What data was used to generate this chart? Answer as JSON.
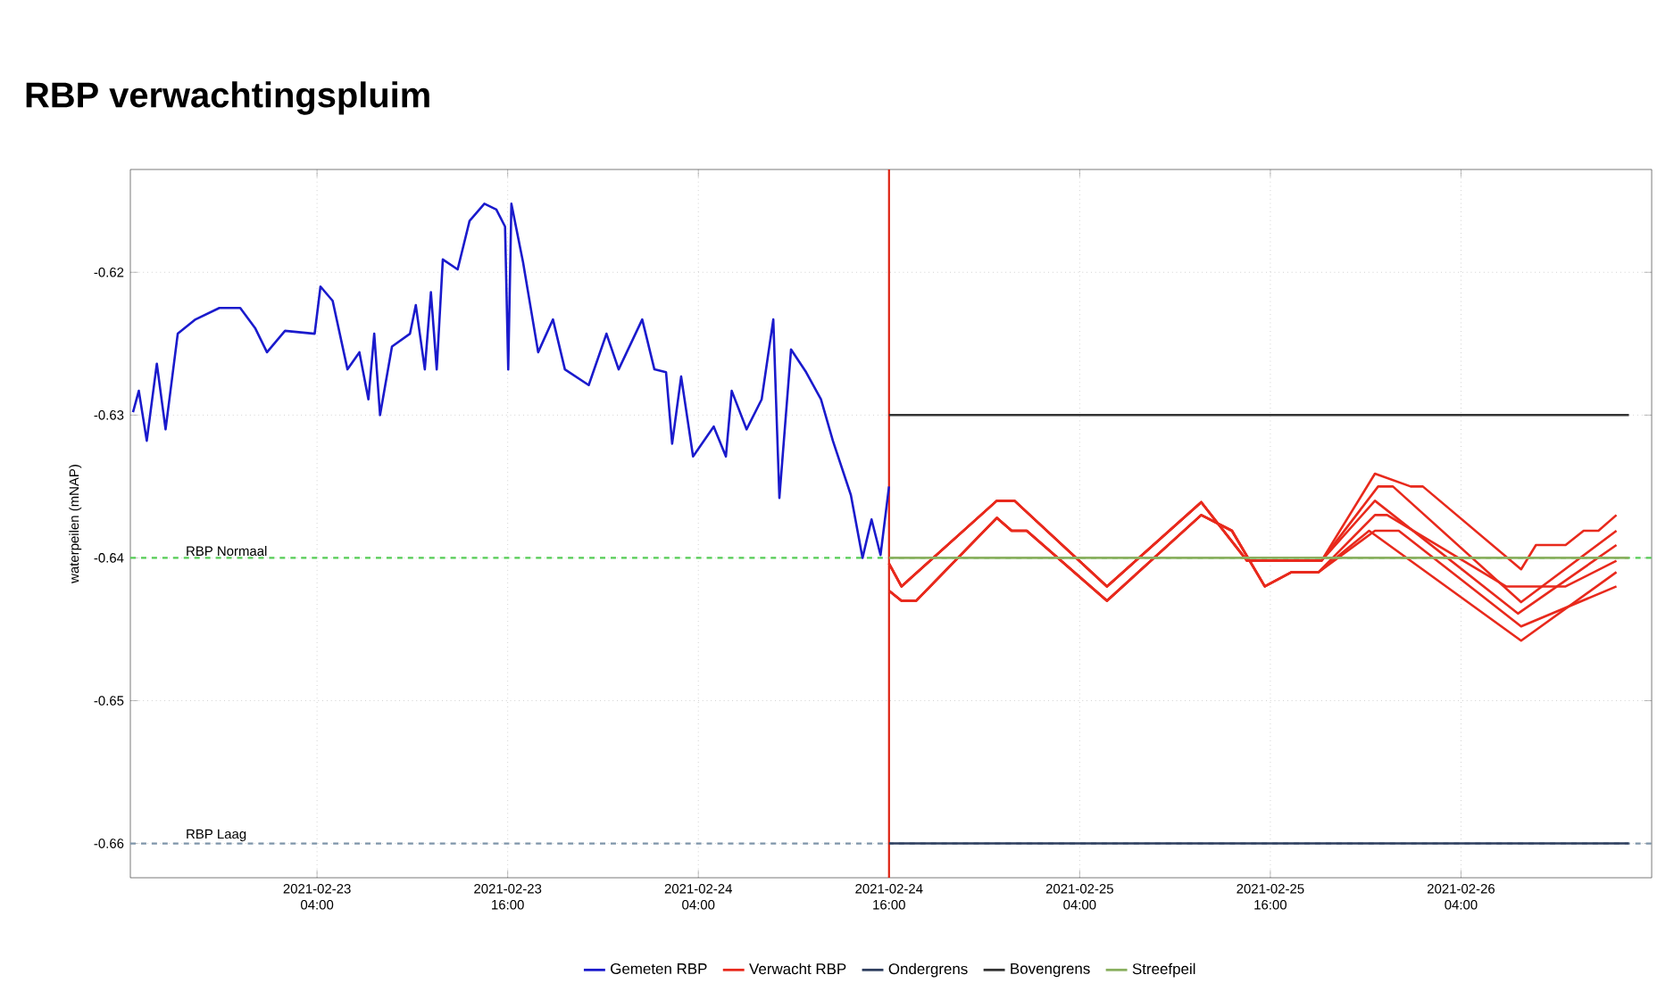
{
  "chart_data": {
    "type": "line",
    "title": "RBP verwachtingspluim",
    "ylabel": "waterpeilen (mNAP)",
    "xlim": [
      "2021-02-22T16:15",
      "2021-02-26T16:00"
    ],
    "xticks": [
      {
        "value": "2021-02-23T04:00",
        "label": "2021-02-23 04:00"
      },
      {
        "value": "2021-02-23T16:00",
        "label": "2021-02-23 16:00"
      },
      {
        "value": "2021-02-24T04:00",
        "label": "2021-02-24 04:00"
      },
      {
        "value": "2021-02-24T16:00",
        "label": "2021-02-24 16:00"
      },
      {
        "value": "2021-02-25T04:00",
        "label": "2021-02-25 04:00"
      },
      {
        "value": "2021-02-25T16:00",
        "label": "2021-02-25 16:00"
      },
      {
        "value": "2021-02-26T04:00",
        "label": "2021-02-26 04:00"
      }
    ],
    "ylim": [
      -0.6624,
      -0.6128
    ],
    "yticks": [
      -0.66,
      -0.65,
      -0.64,
      -0.63,
      -0.62
    ],
    "grid": true,
    "legend": "bottom",
    "line_style": "solid",
    "ref_lines": [
      {
        "axis": "y",
        "value": -0.64,
        "label": "RBP Normaal",
        "color": "#55cc55",
        "line_style": "dashed"
      },
      {
        "axis": "y",
        "value": -0.66,
        "label": "RBP Laag",
        "color": "#7f95aa",
        "line_style": "dashed"
      },
      {
        "axis": "x",
        "value": "2021-02-24T16:00",
        "color": "#dd2211",
        "line_style": "solid"
      }
    ],
    "series": [
      {
        "name": "Gemeten RBP",
        "color": "#1a1acc",
        "x": [
          "2021-02-22T16:25",
          "2021-02-22T16:47",
          "2021-02-22T17:17",
          "2021-02-22T17:55",
          "2021-02-22T18:28",
          "2021-02-22T19:14",
          "2021-02-22T20:21",
          "2021-02-22T21:51",
          "2021-02-22T23:10",
          "2021-02-23T00:06",
          "2021-02-23T00:51",
          "2021-02-23T01:59",
          "2021-02-23T03:51",
          "2021-02-23T04:13",
          "2021-02-23T04:59",
          "2021-02-23T05:55",
          "2021-02-23T06:40",
          "2021-02-23T07:14",
          "2021-02-23T07:36",
          "2021-02-23T07:58",
          "2021-02-23T08:43",
          "2021-02-23T09:51",
          "2021-02-23T10:13",
          "2021-02-23T10:47",
          "2021-02-23T11:10",
          "2021-02-23T11:32",
          "2021-02-23T11:55",
          "2021-02-23T12:51",
          "2021-02-23T13:36",
          "2021-02-23T14:32",
          "2021-02-23T15:17",
          "2021-02-23T15:50",
          "2021-02-23T16:02",
          "2021-02-23T16:14",
          "2021-02-23T16:58",
          "2021-02-23T17:55",
          "2021-02-23T18:51",
          "2021-02-23T19:36",
          "2021-02-23T21:06",
          "2021-02-23T22:13",
          "2021-02-23T22:59",
          "2021-02-24T00:28",
          "2021-02-24T01:14",
          "2021-02-24T01:58",
          "2021-02-24T02:21",
          "2021-02-24T02:55",
          "2021-02-24T03:40",
          "2021-02-24T04:58",
          "2021-02-24T05:44",
          "2021-02-24T06:06",
          "2021-02-24T07:02",
          "2021-02-24T07:59",
          "2021-02-24T08:43",
          "2021-02-24T09:06",
          "2021-02-24T09:50",
          "2021-02-24T10:47",
          "2021-02-24T11:43",
          "2021-02-24T12:28",
          "2021-02-24T13:36",
          "2021-02-24T14:20",
          "2021-02-24T14:54",
          "2021-02-24T15:28",
          "2021-02-24T16:00"
        ],
        "values": [
          -0.6298,
          -0.6283,
          -0.6318,
          -0.6264,
          -0.631,
          -0.6243,
          -0.6233,
          -0.6225,
          -0.6225,
          -0.6239,
          -0.6256,
          -0.6241,
          -0.6243,
          -0.621,
          -0.622,
          -0.6268,
          -0.6256,
          -0.6289,
          -0.6243,
          -0.63,
          -0.6252,
          -0.6243,
          -0.6223,
          -0.6268,
          -0.6214,
          -0.6268,
          -0.6191,
          -0.6198,
          -0.6164,
          -0.6152,
          -0.6156,
          -0.6168,
          -0.6268,
          -0.6152,
          -0.6193,
          -0.6256,
          -0.6233,
          -0.6268,
          -0.6279,
          -0.6243,
          -0.6268,
          -0.6233,
          -0.6268,
          -0.627,
          -0.632,
          -0.6273,
          -0.6329,
          -0.6308,
          -0.6329,
          -0.6283,
          -0.631,
          -0.6289,
          -0.6233,
          -0.6358,
          -0.6254,
          -0.627,
          -0.6289,
          -0.6318,
          -0.6356,
          -0.64,
          -0.6373,
          -0.6398,
          -0.635
        ]
      },
      {
        "name": "Verwacht RBP",
        "color": "#e8291c",
        "x": [
          "2021-02-24T16:00",
          "2021-02-24T16:47",
          "2021-02-24T22:47",
          "2021-02-24T23:54",
          "2021-02-25T05:43",
          "2021-02-25T11:39",
          "2021-02-25T14:32",
          "2021-02-25T19:13",
          "2021-02-25T22:35",
          "2021-02-26T00:50",
          "2021-02-26T01:36",
          "2021-02-26T07:47",
          "2021-02-26T08:43",
          "2021-02-26T10:35",
          "2021-02-26T11:43",
          "2021-02-26T12:39",
          "2021-02-26T13:47"
        ],
        "values": [
          -0.6404,
          -0.642,
          -0.636,
          -0.636,
          -0.642,
          -0.6361,
          -0.6402,
          -0.6402,
          -0.6341,
          -0.635,
          -0.635,
          -0.6408,
          -0.6391,
          -0.6391,
          -0.6381,
          -0.6381,
          -0.637
        ]
      },
      {
        "color": "#e8291c",
        "x": [
          "2021-02-24T16:00",
          "2021-02-24T16:47",
          "2021-02-24T22:47",
          "2021-02-24T23:54",
          "2021-02-25T05:43",
          "2021-02-25T11:39",
          "2021-02-25T14:32",
          "2021-02-25T19:13",
          "2021-02-25T22:47",
          "2021-02-25T23:43",
          "2021-02-26T07:47",
          "2021-02-26T13:47"
        ],
        "values": [
          -0.6404,
          -0.642,
          -0.636,
          -0.636,
          -0.642,
          -0.6361,
          -0.6402,
          -0.6402,
          -0.635,
          -0.635,
          -0.6431,
          -0.6381
        ]
      },
      {
        "color": "#e8291c",
        "x": [
          "2021-02-24T16:00",
          "2021-02-24T16:47",
          "2021-02-24T22:47",
          "2021-02-24T23:54",
          "2021-02-25T05:43",
          "2021-02-25T11:39",
          "2021-02-25T14:32",
          "2021-02-25T19:13",
          "2021-02-25T22:35",
          "2021-02-26T07:35",
          "2021-02-26T13:47"
        ],
        "values": [
          -0.6404,
          -0.642,
          -0.636,
          -0.636,
          -0.642,
          -0.6361,
          -0.6402,
          -0.6402,
          -0.636,
          -0.6439,
          -0.6391
        ]
      },
      {
        "color": "#e8291c",
        "x": [
          "2021-02-24T16:00",
          "2021-02-24T16:47",
          "2021-02-24T17:43",
          "2021-02-24T22:47",
          "2021-02-24T23:43",
          "2021-02-25T00:40",
          "2021-02-25T05:43",
          "2021-02-25T11:39",
          "2021-02-25T13:35",
          "2021-02-25T15:39",
          "2021-02-25T17:20",
          "2021-02-25T19:02",
          "2021-02-25T22:35",
          "2021-02-25T23:21",
          "2021-02-26T06:50",
          "2021-02-26T10:35",
          "2021-02-26T13:47"
        ],
        "values": [
          -0.6423,
          -0.643,
          -0.643,
          -0.6372,
          -0.6381,
          -0.6381,
          -0.643,
          -0.637,
          -0.6381,
          -0.642,
          -0.641,
          -0.641,
          -0.637,
          -0.637,
          -0.642,
          -0.642,
          -0.6402
        ]
      },
      {
        "color": "#e8291c",
        "x": [
          "2021-02-24T16:00",
          "2021-02-24T16:47",
          "2021-02-24T17:43",
          "2021-02-24T22:47",
          "2021-02-24T23:43",
          "2021-02-25T00:40",
          "2021-02-25T05:43",
          "2021-02-25T11:39",
          "2021-02-25T13:35",
          "2021-02-25T15:39",
          "2021-02-25T17:20",
          "2021-02-25T19:02",
          "2021-02-25T22:35",
          "2021-02-26T00:05",
          "2021-02-26T07:47",
          "2021-02-26T13:47"
        ],
        "values": [
          -0.6423,
          -0.643,
          -0.643,
          -0.6372,
          -0.6381,
          -0.6381,
          -0.643,
          -0.637,
          -0.6381,
          -0.642,
          -0.641,
          -0.641,
          -0.6381,
          -0.6381,
          -0.6448,
          -0.642
        ]
      },
      {
        "color": "#e8291c",
        "x": [
          "2021-02-24T16:00",
          "2021-02-24T16:47",
          "2021-02-24T17:43",
          "2021-02-24T22:47",
          "2021-02-24T23:43",
          "2021-02-25T00:40",
          "2021-02-25T05:43",
          "2021-02-25T11:39",
          "2021-02-25T13:35",
          "2021-02-25T15:39",
          "2021-02-25T17:20",
          "2021-02-25T19:02",
          "2021-02-25T22:13",
          "2021-02-26T07:47",
          "2021-02-26T13:47"
        ],
        "values": [
          -0.6423,
          -0.643,
          -0.643,
          -0.6372,
          -0.6381,
          -0.6381,
          -0.643,
          -0.637,
          -0.6381,
          -0.642,
          -0.641,
          -0.641,
          -0.6381,
          -0.6458,
          -0.641
        ]
      },
      {
        "name": "Ondergrens",
        "color": "#2f3f5f",
        "x": [
          "2021-02-24T16:00",
          "2021-02-26T14:34"
        ],
        "values": [
          -0.66,
          -0.66
        ]
      },
      {
        "name": "Bovengrens",
        "color": "#333333",
        "x": [
          "2021-02-24T16:00",
          "2021-02-26T14:34"
        ],
        "values": [
          -0.63,
          -0.63
        ]
      },
      {
        "name": "Streefpeil",
        "color": "#8ab060",
        "x": [
          "2021-02-24T16:00",
          "2021-02-26T14:34"
        ],
        "values": [
          -0.64,
          -0.64
        ]
      }
    ]
  }
}
